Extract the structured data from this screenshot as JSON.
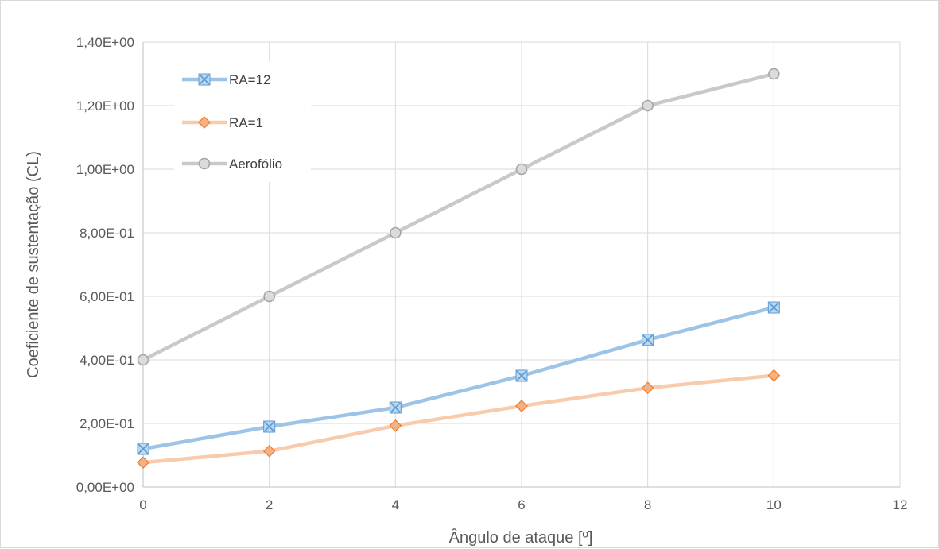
{
  "chart_data": {
    "type": "line",
    "xlabel": "Ângulo de ataque [º]",
    "ylabel": "Coeficiente de sustentação (CL)",
    "xlim": [
      0,
      12
    ],
    "ylim": [
      0,
      1.4
    ],
    "x_ticks": [
      0,
      2,
      4,
      6,
      8,
      10,
      12
    ],
    "y_ticks": [
      0,
      0.2,
      0.4,
      0.6,
      0.8,
      1.0,
      1.2,
      1.4
    ],
    "x_tick_labels": [
      "0",
      "2",
      "4",
      "6",
      "8",
      "10",
      "12"
    ],
    "y_tick_labels": [
      "0,00E+00",
      "2,00E-01",
      "4,00E-01",
      "6,00E-01",
      "8,00E-01",
      "1,00E+00",
      "1,20E+00",
      "1,40E+00"
    ],
    "grid": true,
    "legend_position": "top-left",
    "x": [
      0,
      2,
      4,
      6,
      8,
      10
    ],
    "series": [
      {
        "name": "RA=12",
        "values": [
          0.12,
          0.19,
          0.25,
          0.35,
          0.463,
          0.565
        ],
        "color": "#9dc3e6",
        "marker_color": "#5b9bd5",
        "marker": "x"
      },
      {
        "name": "RA=1",
        "values": [
          0.077,
          0.113,
          0.193,
          0.255,
          0.312,
          0.351
        ],
        "color": "#f8cbad",
        "marker_color": "#ed7d31",
        "marker": "diamond"
      },
      {
        "name": "Aerofólio",
        "values": [
          0.4,
          0.6,
          0.8,
          1.0,
          1.2,
          1.3
        ],
        "color": "#c9c9c9",
        "marker_color": "#a5a5a5",
        "marker": "circle"
      }
    ]
  }
}
